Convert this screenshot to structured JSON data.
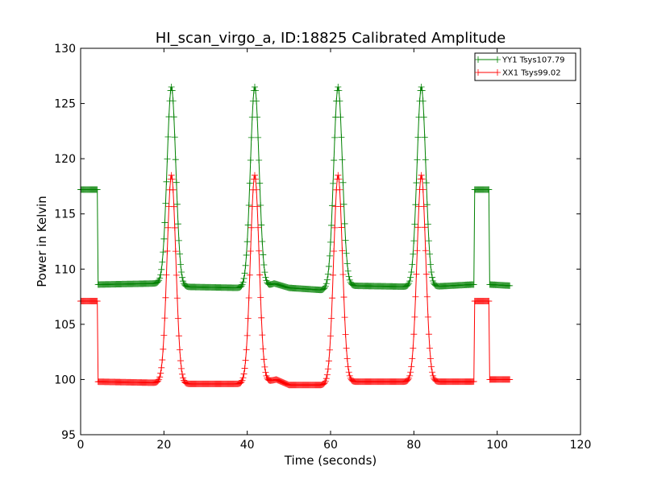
{
  "chart_data": {
    "type": "line",
    "title": "HI_scan_virgo_a, ID:18825 Calibrated Amplitude",
    "xlabel": "Time (seconds)",
    "ylabel": "Power in Kelvin",
    "xlim": [
      0,
      120
    ],
    "ylim": [
      95,
      130
    ],
    "xticks": [
      0,
      20,
      40,
      60,
      80,
      100,
      120
    ],
    "yticks": [
      95,
      100,
      105,
      110,
      115,
      120,
      125,
      130
    ],
    "grid": false,
    "legend_position": "top-right",
    "marker": "+",
    "series": [
      {
        "name": "YY1 Tsys107.79",
        "color": "#008000",
        "cal_on": {
          "ranges": [
            [
              0,
              4
            ],
            [
              94.5,
              98
            ]
          ],
          "level": 117.2
        },
        "baseline": [
          [
            4.2,
            108.6
          ],
          [
            18.5,
            108.7
          ],
          [
            24,
            108.4
          ],
          [
            38,
            108.3
          ],
          [
            43.5,
            108.3
          ],
          [
            46.5,
            108.7
          ],
          [
            50,
            108.3
          ],
          [
            58,
            108.1
          ],
          [
            64,
            108.5
          ],
          [
            79.5,
            108.4
          ],
          [
            84,
            108.4
          ],
          [
            94,
            108.6
          ],
          [
            98.3,
            108.6
          ],
          [
            103,
            108.5
          ]
        ],
        "peaks": [
          {
            "center": 21.8,
            "height": 126.5,
            "sigma": 1.05
          },
          {
            "center": 41.8,
            "height": 126.5,
            "sigma": 1.05
          },
          {
            "center": 61.8,
            "height": 126.5,
            "sigma": 1.05
          },
          {
            "center": 81.8,
            "height": 126.5,
            "sigma": 1.05
          }
        ]
      },
      {
        "name": "XX1 Tsys99.02",
        "color": "#ff0000",
        "cal_on": {
          "ranges": [
            [
              0,
              4
            ],
            [
              94.5,
              98
            ]
          ],
          "level": 107.1
        },
        "baseline": [
          [
            4.2,
            99.8
          ],
          [
            18.5,
            99.7
          ],
          [
            24,
            99.6
          ],
          [
            38,
            99.6
          ],
          [
            43.5,
            99.7
          ],
          [
            47,
            100.0
          ],
          [
            50,
            99.5
          ],
          [
            58,
            99.5
          ],
          [
            64,
            99.8
          ],
          [
            79.5,
            99.8
          ],
          [
            84,
            99.8
          ],
          [
            94,
            99.8
          ],
          [
            98.3,
            100.0
          ],
          [
            103,
            100.0
          ]
        ],
        "peaks": [
          {
            "center": 21.8,
            "height": 118.5,
            "sigma": 1.05
          },
          {
            "center": 41.8,
            "height": 118.5,
            "sigma": 1.05
          },
          {
            "center": 61.8,
            "height": 118.5,
            "sigma": 1.05
          },
          {
            "center": 81.8,
            "height": 118.5,
            "sigma": 1.05
          }
        ]
      }
    ]
  }
}
